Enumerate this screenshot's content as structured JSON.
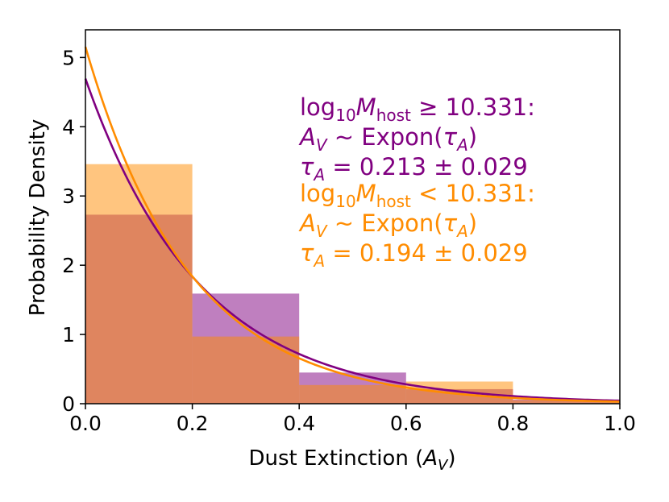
{
  "chart_data": {
    "type": "histogram",
    "xlabel_main": "Dust Extinction (",
    "xlabel_var": "A",
    "xlabel_sub": "V",
    "xlabel_close": ")",
    "ylabel": "Probability Density",
    "xlim": [
      0.0,
      1.0
    ],
    "ylim": [
      0,
      5.4
    ],
    "x_ticks": [
      0.0,
      0.2,
      0.4,
      0.6,
      0.8,
      1.0
    ],
    "x_tick_labels": [
      "0.0",
      "0.2",
      "0.4",
      "0.6",
      "0.8",
      "1.0"
    ],
    "y_ticks": [
      0,
      1,
      2,
      3,
      4,
      5
    ],
    "y_tick_labels": [
      "0",
      "1",
      "2",
      "3",
      "4",
      "5"
    ],
    "bin_edges": [
      0.0,
      0.2,
      0.4,
      0.6,
      0.8,
      1.0
    ],
    "series": [
      {
        "color": "#800080",
        "hist_values": [
          2.73,
          1.59,
          0.45,
          0.21,
          0.06
        ],
        "tau": 0.213,
        "tau_err": 0.029,
        "threshold": "10.331",
        "relation": "≥"
      },
      {
        "color": "#ff8c00",
        "hist_values": [
          3.46,
          0.97,
          0.27,
          0.32,
          0.05
        ],
        "tau": 0.194,
        "tau_err": 0.029,
        "threshold": "10.331",
        "relation": "<"
      }
    ],
    "annotations": [
      {
        "color": "#800080",
        "log_prefix": "log",
        "log_base": "10",
        "mass_symbol": "M",
        "mass_sub": "host",
        "relation_text": " ≥ 10.331:",
        "dist_var": "A",
        "dist_sub": "V",
        "dist_text": " ~ Expon(",
        "tau_symbol": "τ",
        "tau_sub": "A",
        "dist_close": ")",
        "tau_value_text": " = 0.213 ± 0.029"
      },
      {
        "color": "#ff8c00",
        "log_prefix": "log",
        "log_base": "10",
        "mass_symbol": "M",
        "mass_sub": "host",
        "relation_text": " < 10.331:",
        "dist_var": "A",
        "dist_sub": "V",
        "dist_text": " ~ Expon(",
        "tau_symbol": "τ",
        "tau_sub": "A",
        "dist_close": ")",
        "tau_value_text": " = 0.194 ± 0.029"
      }
    ],
    "grid": false
  }
}
